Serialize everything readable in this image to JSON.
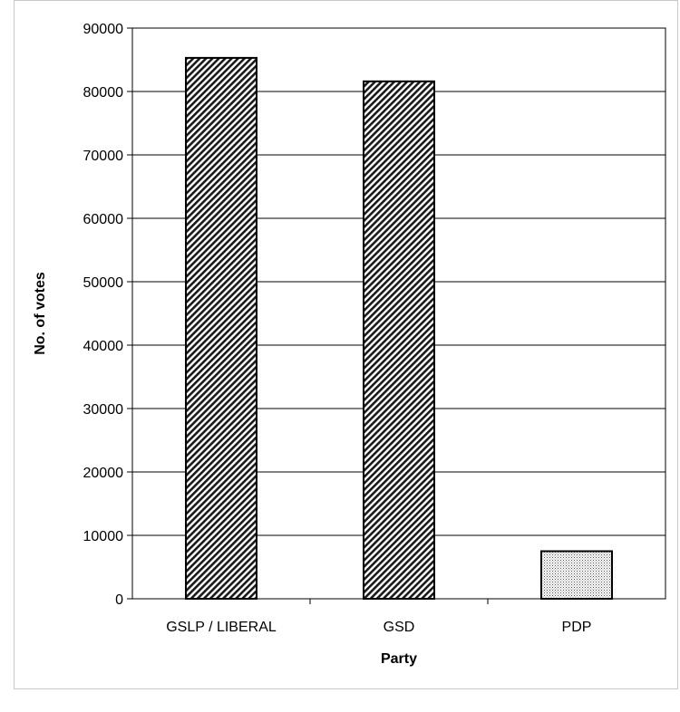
{
  "chart_data": {
    "type": "bar",
    "title": "",
    "xlabel": "Party",
    "ylabel": "No. of votes",
    "categories": [
      "GSLP / LIBERAL",
      "GSD",
      "PDP"
    ],
    "values": [
      85300,
      81600,
      7500
    ],
    "ylim": [
      0,
      90000
    ],
    "yticks": [
      0,
      10000,
      20000,
      30000,
      40000,
      50000,
      60000,
      70000,
      80000,
      90000
    ],
    "grid": true,
    "legend": "none",
    "bar_fills": [
      "diagonal-hatch",
      "diagonal-hatch",
      "fine-dots"
    ]
  }
}
